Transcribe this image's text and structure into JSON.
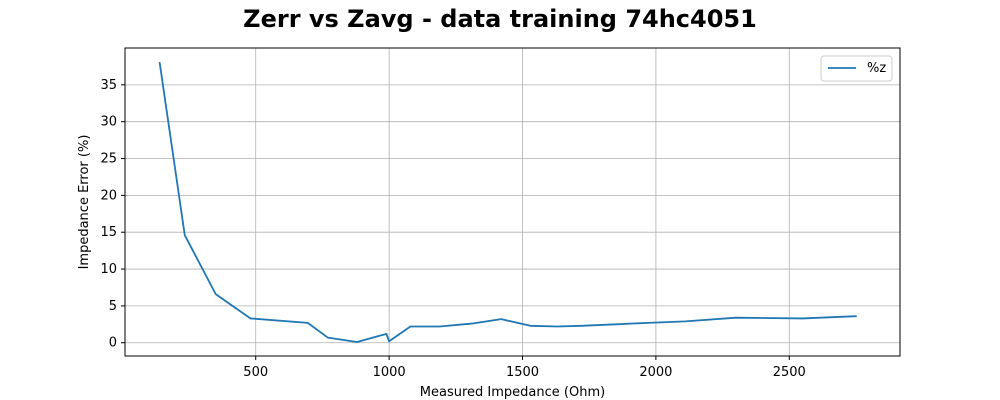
{
  "chart_data": {
    "type": "line",
    "title": "Zerr vs Zavg - data training 74hc4051",
    "xlabel": "Measured Impedance (Ohm)",
    "ylabel": "Impedance Error (%)",
    "xlim": [
      10,
      2915
    ],
    "ylim": [
      -1.8,
      40.0
    ],
    "xticks": [
      500,
      1000,
      1500,
      2000,
      2500
    ],
    "yticks": [
      0,
      5,
      10,
      15,
      20,
      25,
      30,
      35
    ],
    "grid": true,
    "legend_position": "top-right",
    "series": [
      {
        "name": "%z",
        "color": "#1f77b4",
        "x": [
          140,
          234,
          350,
          480,
          695,
          770,
          880,
          990,
          1000,
          1080,
          1190,
          1310,
          1420,
          1530,
          1630,
          1720,
          1850,
          1970,
          2110,
          2300,
          2550,
          2750
        ],
        "y": [
          38.0,
          14.6,
          6.6,
          3.3,
          2.7,
          0.7,
          0.1,
          1.2,
          0.2,
          2.2,
          2.2,
          2.6,
          3.2,
          2.3,
          2.2,
          2.3,
          2.5,
          2.7,
          2.9,
          3.4,
          3.3,
          3.6
        ]
      }
    ]
  }
}
